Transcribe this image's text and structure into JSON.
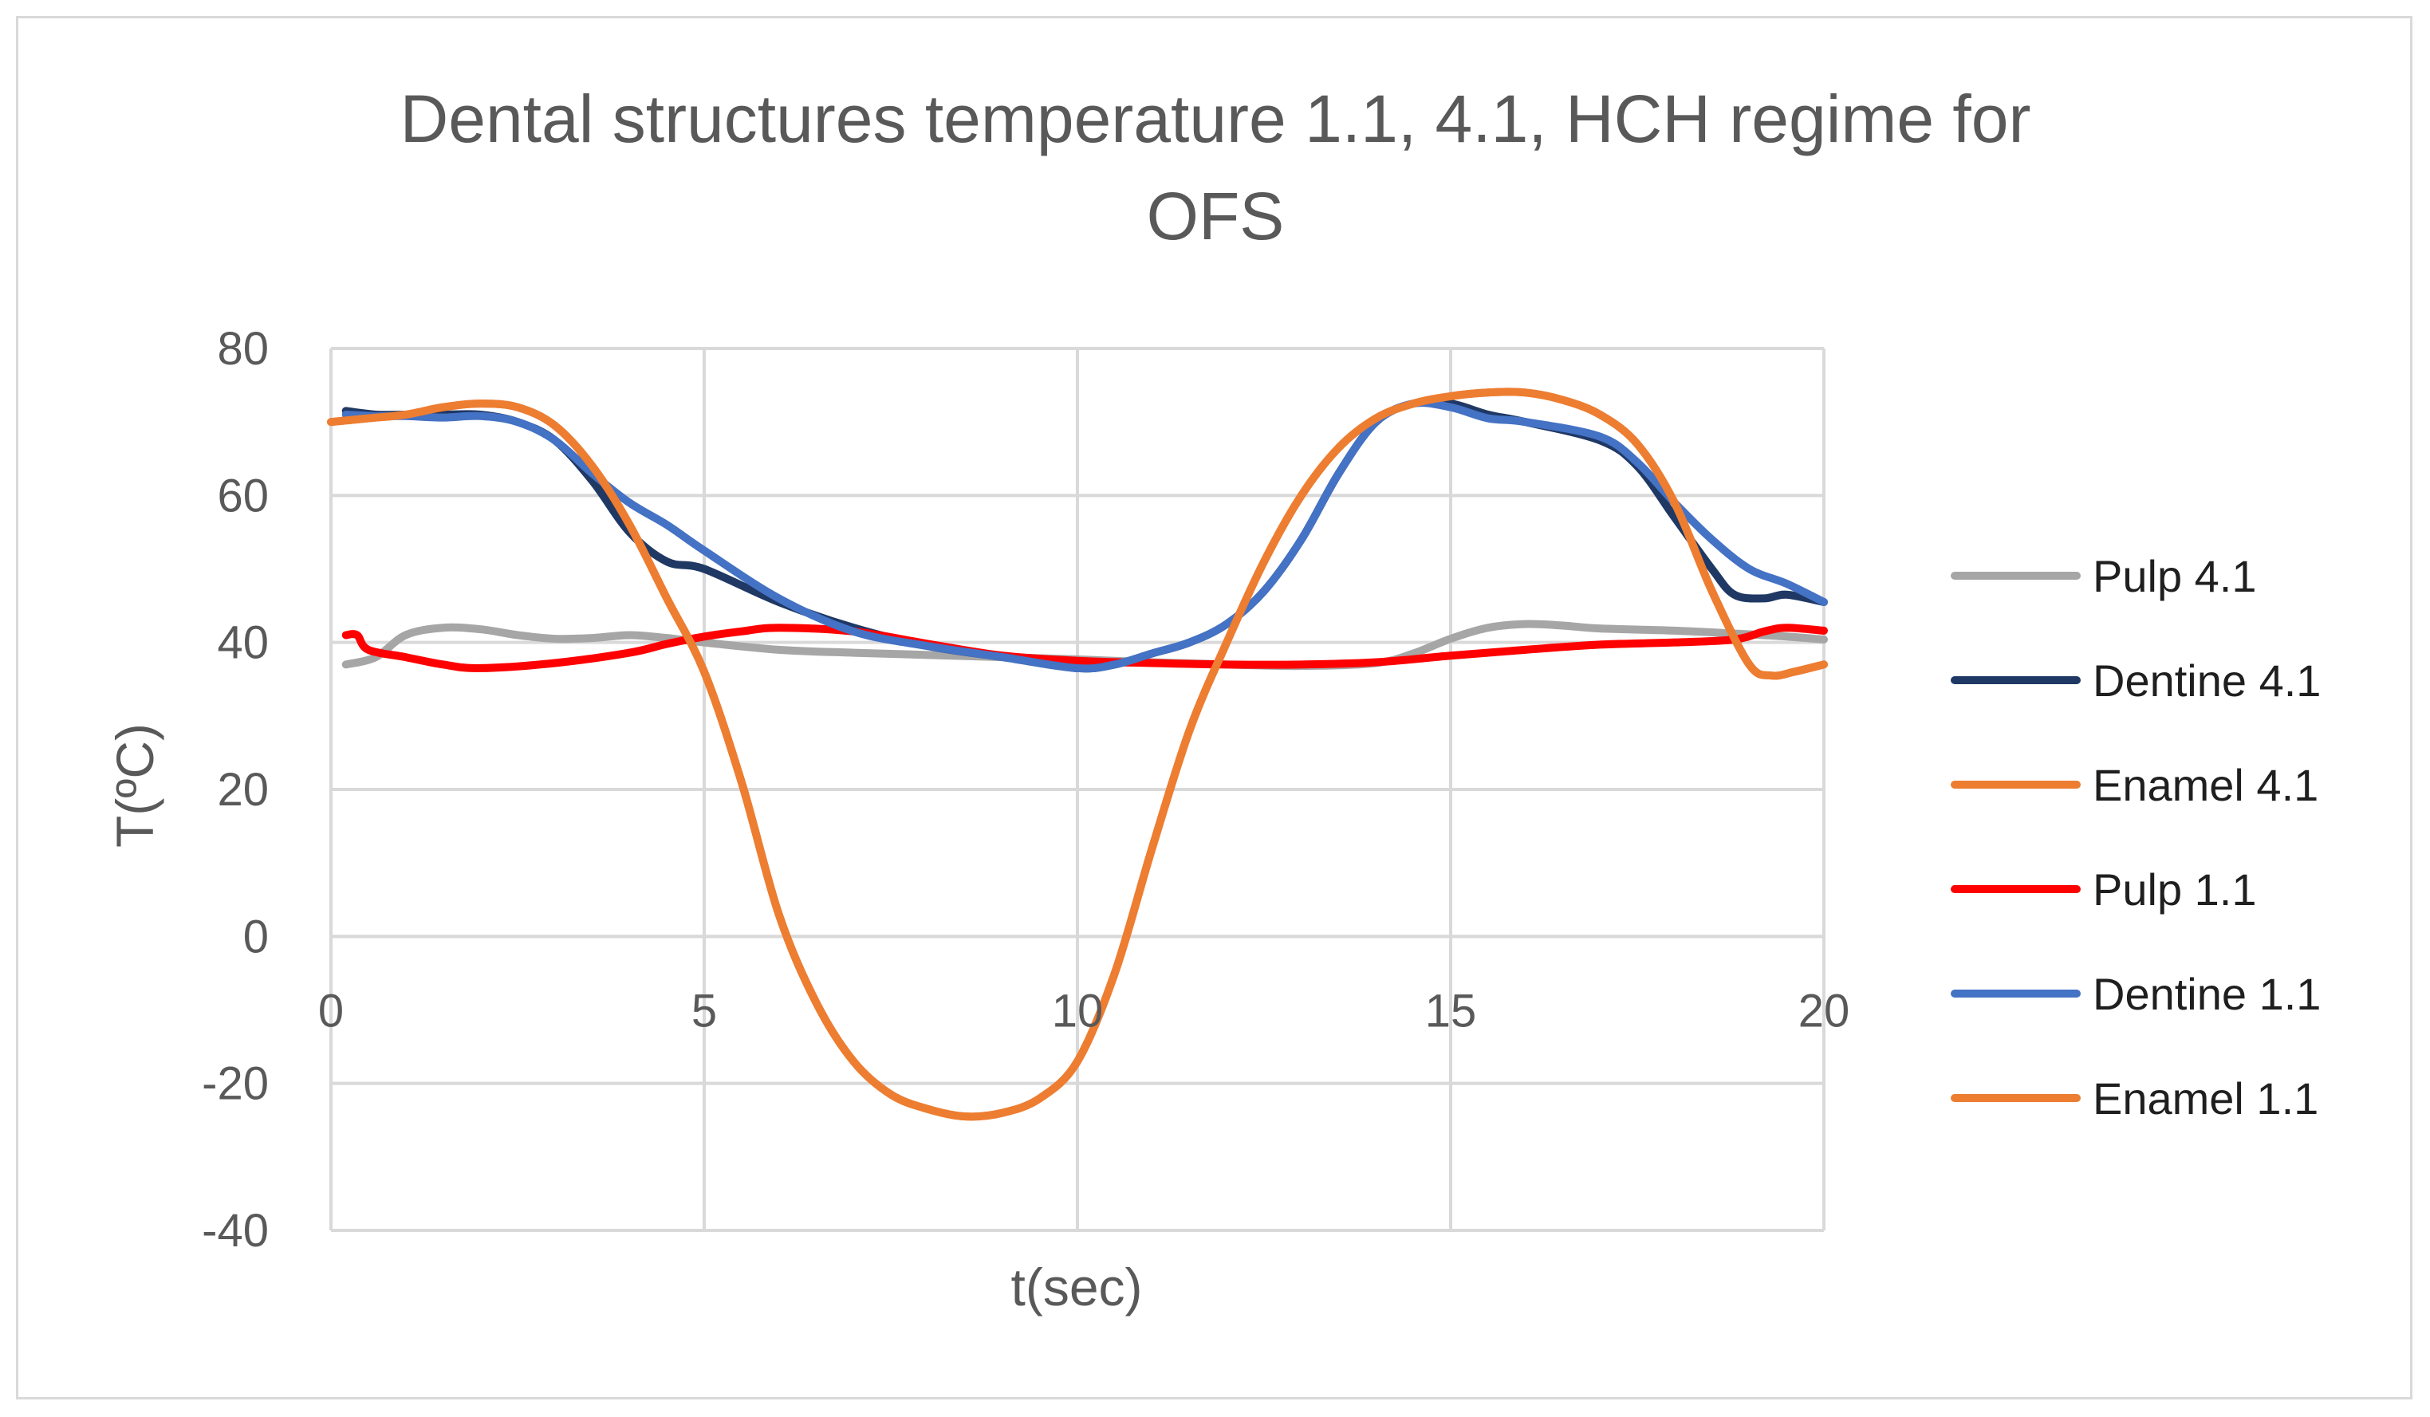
{
  "chart_data": {
    "type": "line",
    "title_line1": "Dental structures temperature 1.1, 4.1, HCH regime for",
    "title_line2": "OFS",
    "xlabel": "t(sec)",
    "ylabel": "T(ºC)",
    "xlim": [
      0,
      20
    ],
    "ylim": [
      -40,
      80
    ],
    "xticks": [
      0,
      5,
      10,
      15,
      20
    ],
    "yticks": [
      80,
      60,
      40,
      20,
      0,
      -20,
      -40
    ],
    "xtick_labels": [
      "0",
      "5",
      "10",
      "15",
      "20"
    ],
    "ytick_labels": [
      "80",
      "60",
      "40",
      "20",
      "0",
      "-20",
      "-40"
    ],
    "grid": true,
    "legend_position": "right",
    "series": [
      {
        "name": "Pulp 4.1",
        "color": "#a6a6a6",
        "points": [
          [
            0.2,
            37
          ],
          [
            0.6,
            38
          ],
          [
            1,
            41
          ],
          [
            1.5,
            42
          ],
          [
            2,
            41.8
          ],
          [
            2.5,
            41
          ],
          [
            3,
            40.5
          ],
          [
            3.5,
            40.6
          ],
          [
            4,
            41
          ],
          [
            4.5,
            40.6
          ],
          [
            5,
            40
          ],
          [
            6,
            39
          ],
          [
            7,
            38.6
          ],
          [
            8,
            38.3
          ],
          [
            9,
            38
          ],
          [
            10,
            37.7
          ],
          [
            11,
            37.3
          ],
          [
            12,
            37
          ],
          [
            13,
            36.8
          ],
          [
            14,
            37.2
          ],
          [
            14.5,
            38.5
          ],
          [
            15,
            40.5
          ],
          [
            15.5,
            42
          ],
          [
            16,
            42.5
          ],
          [
            16.5,
            42.3
          ],
          [
            17,
            41.9
          ],
          [
            18,
            41.6
          ],
          [
            19,
            41.1
          ],
          [
            19.5,
            40.8
          ],
          [
            20,
            40.4
          ]
        ]
      },
      {
        "name": "Dentine 4.1",
        "color": "#1f3864",
        "points": [
          [
            0.2,
            71.5
          ],
          [
            0.6,
            71
          ],
          [
            1,
            71
          ],
          [
            1.5,
            71
          ],
          [
            2,
            71
          ],
          [
            2.5,
            70
          ],
          [
            3,
            67.5
          ],
          [
            3.5,
            62
          ],
          [
            4,
            55
          ],
          [
            4.5,
            51
          ],
          [
            5,
            50
          ],
          [
            6,
            45.5
          ],
          [
            7,
            42
          ],
          [
            8,
            39.5
          ],
          [
            9,
            38
          ],
          [
            10,
            36.5
          ],
          [
            10.5,
            37
          ],
          [
            11,
            38.5
          ],
          [
            11.5,
            40
          ],
          [
            12,
            42.5
          ],
          [
            12.5,
            47
          ],
          [
            13,
            54
          ],
          [
            13.5,
            63
          ],
          [
            14,
            70
          ],
          [
            14.5,
            72.5
          ],
          [
            15,
            72.5
          ],
          [
            15.5,
            71
          ],
          [
            16,
            70
          ],
          [
            17,
            67.5
          ],
          [
            17.5,
            64
          ],
          [
            18,
            57
          ],
          [
            18.5,
            50
          ],
          [
            18.8,
            46.5
          ],
          [
            19.2,
            46
          ],
          [
            19.5,
            46.5
          ],
          [
            20,
            45.5
          ]
        ]
      },
      {
        "name": "Enamel 4.1",
        "color": "#ed7d31",
        "points": [
          [
            0,
            70
          ],
          [
            0.5,
            70.5
          ],
          [
            1,
            71
          ],
          [
            1.5,
            72
          ],
          [
            2,
            72.5
          ],
          [
            2.5,
            72
          ],
          [
            3,
            69.5
          ],
          [
            3.5,
            64
          ],
          [
            4,
            56
          ],
          [
            4.5,
            46
          ],
          [
            5,
            36
          ],
          [
            5.5,
            21
          ],
          [
            6,
            3
          ],
          [
            6.5,
            -9
          ],
          [
            7,
            -17
          ],
          [
            7.5,
            -21.5
          ],
          [
            8,
            -23.5
          ],
          [
            8.5,
            -24.5
          ],
          [
            9,
            -24
          ],
          [
            9.5,
            -22
          ],
          [
            10,
            -17
          ],
          [
            10.5,
            -5
          ],
          [
            11,
            12
          ],
          [
            11.5,
            28
          ],
          [
            12,
            40
          ],
          [
            12.5,
            51
          ],
          [
            13,
            60
          ],
          [
            13.5,
            66.5
          ],
          [
            14,
            70.5
          ],
          [
            14.5,
            72.5
          ],
          [
            15,
            73.5
          ],
          [
            15.5,
            74
          ],
          [
            16,
            74
          ],
          [
            16.5,
            73
          ],
          [
            17,
            71
          ],
          [
            17.5,
            67
          ],
          [
            18,
            59
          ],
          [
            18.5,
            47
          ],
          [
            19,
            37
          ],
          [
            19.3,
            35.5
          ],
          [
            19.6,
            36
          ],
          [
            20,
            37
          ]
        ]
      },
      {
        "name": "Pulp 1.1",
        "color": "#ff0000",
        "points": [
          [
            0.2,
            41
          ],
          [
            0.35,
            41
          ],
          [
            0.5,
            39
          ],
          [
            1,
            38
          ],
          [
            1.5,
            37
          ],
          [
            2,
            36.5
          ],
          [
            3,
            37.2
          ],
          [
            4,
            38.6
          ],
          [
            4.5,
            39.8
          ],
          [
            5,
            40.8
          ],
          [
            5.5,
            41.5
          ],
          [
            6,
            42
          ],
          [
            7,
            41.5
          ],
          [
            8,
            39.8
          ],
          [
            9,
            38.2
          ],
          [
            10,
            37.5
          ],
          [
            11,
            37.2
          ],
          [
            12,
            37
          ],
          [
            13,
            37
          ],
          [
            14,
            37.3
          ],
          [
            15,
            38.2
          ],
          [
            16,
            39
          ],
          [
            17,
            39.7
          ],
          [
            18,
            40
          ],
          [
            18.8,
            40.4
          ],
          [
            19.2,
            41.5
          ],
          [
            19.5,
            42
          ],
          [
            20,
            41.6
          ]
        ]
      },
      {
        "name": "Dentine 1.1",
        "color": "#4472c4",
        "points": [
          [
            0.2,
            71
          ],
          [
            0.6,
            70.8
          ],
          [
            1,
            70.8
          ],
          [
            1.5,
            70.6
          ],
          [
            2,
            70.8
          ],
          [
            2.5,
            70
          ],
          [
            3,
            67.5
          ],
          [
            3.5,
            63
          ],
          [
            4,
            59
          ],
          [
            4.5,
            56
          ],
          [
            5,
            52.5
          ],
          [
            6,
            46
          ],
          [
            7,
            41.5
          ],
          [
            8,
            39.5
          ],
          [
            9,
            38
          ],
          [
            10,
            36.5
          ],
          [
            10.5,
            37
          ],
          [
            11,
            38.5
          ],
          [
            11.5,
            40
          ],
          [
            12,
            42.5
          ],
          [
            12.5,
            47
          ],
          [
            13,
            54
          ],
          [
            13.5,
            63
          ],
          [
            14,
            70
          ],
          [
            14.5,
            72.5
          ],
          [
            15,
            72
          ],
          [
            15.5,
            70.5
          ],
          [
            16,
            70
          ],
          [
            17,
            68
          ],
          [
            17.5,
            64.5
          ],
          [
            18,
            59
          ],
          [
            18.5,
            54
          ],
          [
            19,
            50
          ],
          [
            19.5,
            48
          ],
          [
            20,
            45.5
          ]
        ]
      },
      {
        "name": "Enamel 1.1",
        "color": "#ed7d31",
        "points": [
          [
            0,
            70
          ],
          [
            0.5,
            70.5
          ],
          [
            1,
            71
          ],
          [
            1.5,
            72
          ],
          [
            2,
            72.5
          ],
          [
            2.5,
            72
          ],
          [
            3,
            69.5
          ],
          [
            3.5,
            64
          ],
          [
            4,
            56
          ],
          [
            4.5,
            46
          ],
          [
            5,
            36
          ],
          [
            5.5,
            21
          ],
          [
            6,
            3
          ],
          [
            6.5,
            -9
          ],
          [
            7,
            -17
          ],
          [
            7.5,
            -21.5
          ],
          [
            8,
            -23.5
          ],
          [
            8.5,
            -24.5
          ],
          [
            9,
            -24
          ],
          [
            9.5,
            -22
          ],
          [
            10,
            -17
          ],
          [
            10.5,
            -5
          ],
          [
            11,
            12
          ],
          [
            11.5,
            28
          ],
          [
            12,
            40
          ],
          [
            12.5,
            51
          ],
          [
            13,
            60
          ],
          [
            13.5,
            66.5
          ],
          [
            14,
            70.5
          ],
          [
            14.5,
            72.5
          ],
          [
            15,
            73.5
          ],
          [
            15.5,
            74
          ],
          [
            16,
            74
          ],
          [
            16.5,
            73
          ],
          [
            17,
            71
          ],
          [
            17.5,
            67
          ],
          [
            18,
            59
          ],
          [
            18.5,
            47
          ],
          [
            19,
            37
          ],
          [
            19.3,
            35.5
          ],
          [
            19.6,
            36
          ],
          [
            20,
            37
          ]
        ]
      }
    ]
  }
}
